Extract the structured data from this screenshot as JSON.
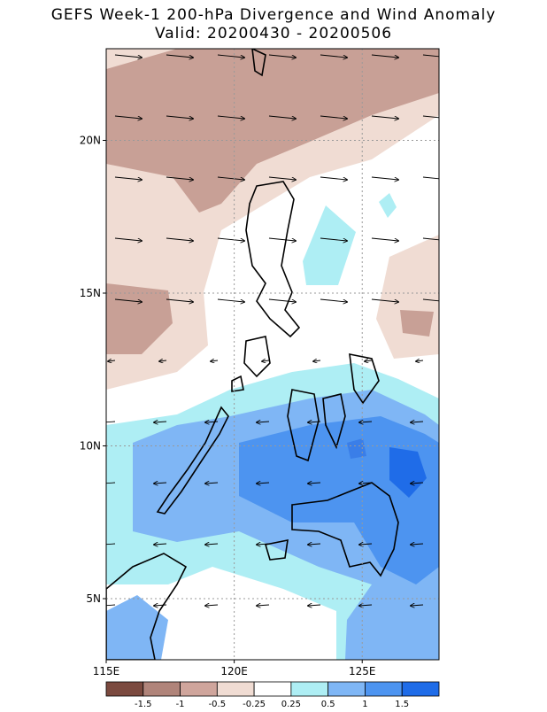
{
  "header": {
    "title": "GEFS Week-1 200-hPa Divergence and Wind Anomaly",
    "subtitle": "Valid: 20200430 - 20200506"
  },
  "map": {
    "lon_range": [
      115,
      128
    ],
    "lat_range": [
      3,
      23
    ],
    "lat_ticks": [
      {
        "value": 20,
        "label": "20N"
      },
      {
        "value": 15,
        "label": "15N"
      },
      {
        "value": 10,
        "label": "10N"
      },
      {
        "value": 5,
        "label": "5N"
      }
    ],
    "lon_ticks": [
      {
        "value": 115,
        "label": "115E"
      },
      {
        "value": 120,
        "label": "120E"
      },
      {
        "value": 125,
        "label": "125E"
      }
    ]
  },
  "colorbar": {
    "levels": [
      -1.5,
      -1,
      -0.5,
      -0.25,
      0.25,
      0.5,
      1,
      1.5
    ],
    "colors": [
      "#7b4a3f",
      "#b0847a",
      "#cfa59c",
      "#f0dcd3",
      "#ffffff",
      "#aeeef4",
      "#7fb6f5",
      "#4d94f0",
      "#1f6ce8"
    ]
  }
}
